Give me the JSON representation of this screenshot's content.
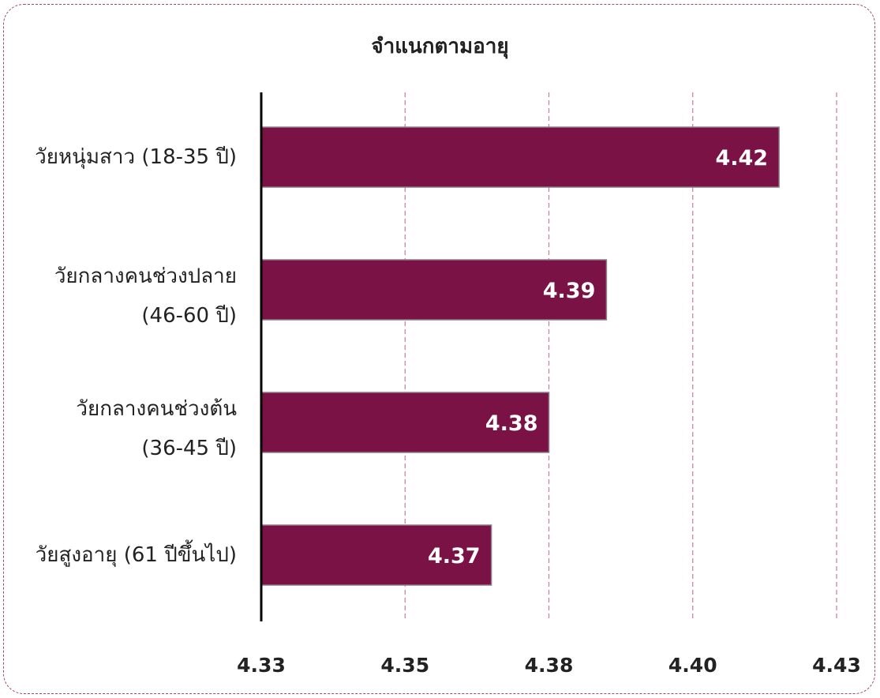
{
  "chart_data": {
    "type": "bar",
    "orientation": "horizontal",
    "title": "จำแนกตามอายุ",
    "categories": [
      [
        "วัยหนุ่มสาว (18-35 ปี)"
      ],
      [
        "วัยกลางคนช่วงปลาย",
        "(46-60 ปี)"
      ],
      [
        "วัยกลางคนช่วงต้น",
        "(36-45 ปี)"
      ],
      [
        "วัยสูงอายุ (61 ปีขึ้นไป)"
      ]
    ],
    "values": [
      4.42,
      4.39,
      4.38,
      4.37
    ],
    "value_labels": [
      "4.42",
      "4.39",
      "4.38",
      "4.37"
    ],
    "xlim": [
      4.33,
      4.43
    ],
    "x_ticks": [
      4.33,
      4.355,
      4.38,
      4.405,
      4.43
    ],
    "x_tick_labels": [
      "4.33",
      "4.35",
      "4.38",
      "4.40",
      "4.43"
    ],
    "grid": "vertical-dashed",
    "bar_color": "#7a1246",
    "grid_color": "#c97b95"
  }
}
